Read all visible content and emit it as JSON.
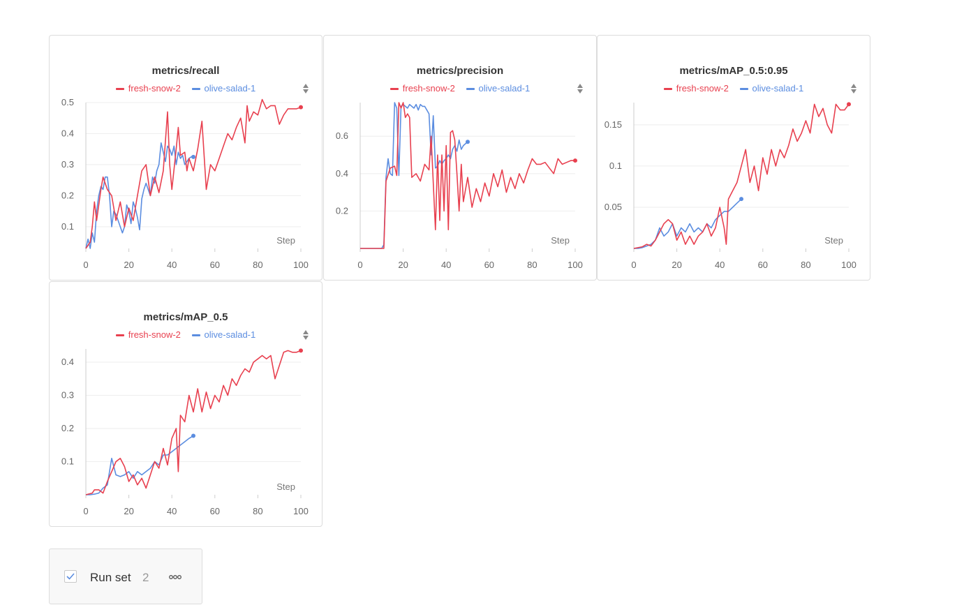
{
  "colors": {
    "fresh_snow": "#e8404f",
    "olive_salad": "#5b8de0",
    "grid": "#eeeeee",
    "axis": "#999999"
  },
  "panels": [
    {
      "title": "metrics/recall",
      "legend": [
        "fresh-snow-2",
        "olive-salad-1"
      ],
      "step_label": "Step",
      "chart_data": {
        "type": "line",
        "title": "metrics/recall",
        "xlabel": "Step",
        "xlim": [
          0,
          100
        ],
        "ylim": [
          0.03,
          0.5
        ],
        "xticks": [
          0,
          20,
          40,
          60,
          80,
          100
        ],
        "yticks": [
          0.1,
          0.2,
          0.3,
          0.4,
          0.5
        ],
        "ytick_labels": [
          "0.1",
          "0.2",
          "0.3",
          "0.4",
          "0.5"
        ],
        "series": [
          {
            "name": "fresh-snow-2",
            "color": "#e8404f",
            "x": [
              0,
              2,
              3,
              4,
              5,
              7,
              8,
              10,
              12,
              14,
              16,
              18,
              20,
              22,
              24,
              26,
              28,
              30,
              32,
              34,
              36,
              38,
              39,
              40,
              42,
              43,
              44,
              46,
              47,
              48,
              50,
              52,
              54,
              56,
              58,
              60,
              62,
              64,
              66,
              68,
              70,
              72,
              74,
              75,
              76,
              78,
              80,
              82,
              84,
              86,
              88,
              90,
              92,
              94,
              96,
              98,
              100
            ],
            "y": [
              0.03,
              0.05,
              0.1,
              0.18,
              0.12,
              0.22,
              0.26,
              0.22,
              0.2,
              0.12,
              0.18,
              0.1,
              0.16,
              0.12,
              0.2,
              0.28,
              0.3,
              0.2,
              0.26,
              0.21,
              0.28,
              0.47,
              0.3,
              0.22,
              0.35,
              0.42,
              0.33,
              0.34,
              0.28,
              0.32,
              0.28,
              0.35,
              0.44,
              0.22,
              0.3,
              0.28,
              0.32,
              0.36,
              0.4,
              0.38,
              0.42,
              0.45,
              0.37,
              0.49,
              0.44,
              0.47,
              0.46,
              0.51,
              0.48,
              0.49,
              0.49,
              0.43,
              0.46,
              0.48,
              0.48,
              0.48,
              0.485
            ]
          },
          {
            "name": "olive-salad-1",
            "color": "#5b8de0",
            "x": [
              0,
              1,
              2,
              3,
              4,
              5,
              6,
              7,
              8,
              9,
              10,
              11,
              12,
              13,
              14,
              15,
              16,
              17,
              18,
              19,
              20,
              21,
              22,
              23,
              24,
              25,
              26,
              27,
              28,
              29,
              30,
              31,
              32,
              33,
              34,
              35,
              36,
              37,
              38,
              39,
              40,
              41,
              42,
              43,
              44,
              45,
              46,
              47,
              48,
              49,
              50
            ],
            "y": [
              0.03,
              0.06,
              0.03,
              0.08,
              0.05,
              0.15,
              0.2,
              0.23,
              0.22,
              0.26,
              0.26,
              0.2,
              0.1,
              0.15,
              0.14,
              0.12,
              0.1,
              0.08,
              0.1,
              0.17,
              0.15,
              0.11,
              0.18,
              0.16,
              0.13,
              0.09,
              0.19,
              0.22,
              0.24,
              0.22,
              0.2,
              0.26,
              0.24,
              0.28,
              0.3,
              0.37,
              0.34,
              0.31,
              0.36,
              0.35,
              0.33,
              0.36,
              0.3,
              0.34,
              0.32,
              0.33,
              0.3,
              0.31,
              0.32,
              0.325,
              0.325
            ]
          }
        ]
      }
    },
    {
      "title": "metrics/precision",
      "legend": [
        "fresh-snow-2",
        "olive-salad-1"
      ],
      "step_label": "Step",
      "chart_data": {
        "type": "line",
        "title": "metrics/precision",
        "xlabel": "Step",
        "xlim": [
          0,
          100
        ],
        "ylim": [
          0,
          0.78
        ],
        "xticks": [
          0,
          20,
          40,
          60,
          80,
          100
        ],
        "yticks": [
          0.2,
          0.4,
          0.6
        ],
        "ytick_labels": [
          "0.2",
          "0.4",
          "0.6"
        ],
        "series": [
          {
            "name": "fresh-snow-2",
            "color": "#e8404f",
            "x": [
              0,
              11,
              12,
              14,
              16,
              17,
              18,
              19,
              20,
              21,
              22,
              23,
              24,
              26,
              28,
              30,
              32,
              33,
              34,
              35,
              36,
              37,
              38,
              39,
              40,
              41,
              42,
              43,
              44,
              45,
              46,
              47,
              48,
              50,
              52,
              54,
              56,
              58,
              60,
              62,
              64,
              66,
              68,
              70,
              72,
              74,
              76,
              78,
              80,
              82,
              84,
              86,
              88,
              90,
              92,
              94,
              96,
              98,
              100
            ],
            "y": [
              0,
              0,
              0.36,
              0.43,
              0.44,
              0.39,
              0.78,
              0.75,
              0.78,
              0.7,
              0.72,
              0.7,
              0.38,
              0.4,
              0.36,
              0.45,
              0.42,
              0.6,
              0.35,
              0.1,
              0.5,
              0.15,
              0.5,
              0.2,
              0.55,
              0.1,
              0.62,
              0.63,
              0.58,
              0.4,
              0.2,
              0.45,
              0.25,
              0.38,
              0.22,
              0.32,
              0.25,
              0.35,
              0.28,
              0.4,
              0.33,
              0.42,
              0.3,
              0.38,
              0.32,
              0.4,
              0.35,
              0.42,
              0.48,
              0.45,
              0.45,
              0.46,
              0.43,
              0.4,
              0.48,
              0.45,
              0.46,
              0.47,
              0.47
            ]
          },
          {
            "name": "olive-salad-1",
            "color": "#5b8de0",
            "x": [
              0,
              10,
              11,
              12,
              13,
              14,
              15,
              16,
              17,
              18,
              19,
              20,
              21,
              22,
              23,
              24,
              25,
              26,
              27,
              28,
              29,
              30,
              31,
              32,
              33,
              34,
              35,
              36,
              37,
              38,
              39,
              40,
              41,
              42,
              43,
              44,
              45,
              46,
              47,
              48,
              49,
              50
            ],
            "y": [
              0,
              0,
              0.02,
              0.38,
              0.48,
              0.4,
              0.39,
              0.78,
              0.75,
              0.39,
              0.76,
              0.77,
              0.76,
              0.75,
              0.77,
              0.76,
              0.75,
              0.77,
              0.74,
              0.77,
              0.76,
              0.76,
              0.74,
              0.72,
              0.5,
              0.71,
              0.43,
              0.44,
              0.47,
              0.45,
              0.47,
              0.48,
              0.5,
              0.48,
              0.53,
              0.55,
              0.52,
              0.58,
              0.53,
              0.55,
              0.56,
              0.57
            ]
          }
        ]
      }
    },
    {
      "title": "metrics/mAP_0.5:0.95",
      "legend": [
        "fresh-snow-2",
        "olive-salad-1"
      ],
      "step_label": "Step",
      "chart_data": {
        "type": "line",
        "title": "metrics/mAP_0.5:0.95",
        "xlabel": "Step",
        "xlim": [
          0,
          100
        ],
        "ylim": [
          0,
          0.177
        ],
        "xticks": [
          0,
          20,
          40,
          60,
          80,
          100
        ],
        "yticks": [
          0.05,
          0.1,
          0.15
        ],
        "ytick_labels": [
          "0.05",
          "0.1",
          "0.15"
        ],
        "series": [
          {
            "name": "fresh-snow-2",
            "color": "#e8404f",
            "x": [
              0,
              4,
              6,
              8,
              10,
              12,
              14,
              16,
              18,
              20,
              22,
              24,
              26,
              28,
              30,
              32,
              34,
              36,
              38,
              40,
              42,
              43,
              44,
              46,
              48,
              50,
              52,
              54,
              56,
              58,
              60,
              62,
              64,
              66,
              68,
              70,
              72,
              74,
              76,
              78,
              80,
              82,
              84,
              86,
              88,
              90,
              92,
              94,
              96,
              98,
              100
            ],
            "y": [
              0,
              0.002,
              0.005,
              0.003,
              0.01,
              0.02,
              0.03,
              0.035,
              0.03,
              0.01,
              0.02,
              0.005,
              0.015,
              0.005,
              0.015,
              0.02,
              0.03,
              0.015,
              0.025,
              0.05,
              0.025,
              0.005,
              0.06,
              0.07,
              0.08,
              0.1,
              0.12,
              0.08,
              0.1,
              0.07,
              0.11,
              0.09,
              0.12,
              0.1,
              0.12,
              0.11,
              0.125,
              0.145,
              0.13,
              0.14,
              0.155,
              0.14,
              0.175,
              0.16,
              0.17,
              0.15,
              0.14,
              0.175,
              0.168,
              0.168,
              0.175
            ]
          },
          {
            "name": "olive-salad-1",
            "color": "#5b8de0",
            "x": [
              0,
              2,
              4,
              6,
              8,
              10,
              12,
              14,
              16,
              18,
              20,
              22,
              24,
              26,
              28,
              30,
              32,
              34,
              36,
              38,
              40,
              42,
              44,
              46,
              48,
              50
            ],
            "y": [
              0,
              0,
              0.001,
              0.003,
              0.005,
              0.01,
              0.025,
              0.015,
              0.02,
              0.03,
              0.015,
              0.025,
              0.02,
              0.03,
              0.02,
              0.025,
              0.02,
              0.03,
              0.025,
              0.035,
              0.04,
              0.045,
              0.045,
              0.05,
              0.055,
              0.06
            ]
          }
        ]
      }
    },
    {
      "title": "metrics/mAP_0.5",
      "legend": [
        "fresh-snow-2",
        "olive-salad-1"
      ],
      "step_label": "Step",
      "chart_data": {
        "type": "line",
        "title": "metrics/mAP_0.5",
        "xlabel": "Step",
        "xlim": [
          0,
          100
        ],
        "ylim": [
          0,
          0.44
        ],
        "xticks": [
          0,
          20,
          40,
          60,
          80,
          100
        ],
        "yticks": [
          0.1,
          0.2,
          0.3,
          0.4
        ],
        "ytick_labels": [
          "0.1",
          "0.2",
          "0.3",
          "0.4"
        ],
        "series": [
          {
            "name": "fresh-snow-2",
            "color": "#e8404f",
            "x": [
              0,
              3,
              4,
              6,
              8,
              10,
              12,
              14,
              16,
              18,
              20,
              22,
              24,
              26,
              28,
              30,
              32,
              34,
              36,
              38,
              40,
              42,
              43,
              44,
              46,
              48,
              50,
              52,
              54,
              56,
              58,
              60,
              62,
              64,
              66,
              68,
              70,
              72,
              74,
              76,
              78,
              80,
              82,
              84,
              86,
              88,
              90,
              92,
              94,
              96,
              98,
              100
            ],
            "y": [
              0,
              0.005,
              0.015,
              0.015,
              0.005,
              0.04,
              0.07,
              0.1,
              0.11,
              0.085,
              0.04,
              0.06,
              0.03,
              0.05,
              0.02,
              0.06,
              0.1,
              0.08,
              0.14,
              0.09,
              0.17,
              0.2,
              0.07,
              0.24,
              0.22,
              0.3,
              0.25,
              0.32,
              0.25,
              0.31,
              0.26,
              0.3,
              0.28,
              0.33,
              0.3,
              0.35,
              0.33,
              0.36,
              0.38,
              0.37,
              0.4,
              0.41,
              0.42,
              0.41,
              0.42,
              0.35,
              0.39,
              0.43,
              0.435,
              0.43,
              0.43,
              0.435
            ]
          },
          {
            "name": "olive-salad-1",
            "color": "#5b8de0",
            "x": [
              0,
              2,
              4,
              6,
              8,
              10,
              12,
              14,
              16,
              18,
              20,
              22,
              24,
              26,
              28,
              30,
              32,
              34,
              36,
              38,
              40,
              42,
              44,
              46,
              48,
              50
            ],
            "y": [
              0,
              0,
              0.002,
              0.005,
              0.02,
              0.03,
              0.11,
              0.06,
              0.055,
              0.06,
              0.07,
              0.05,
              0.07,
              0.06,
              0.07,
              0.08,
              0.1,
              0.09,
              0.12,
              0.12,
              0.13,
              0.14,
              0.15,
              0.16,
              0.17,
              0.178
            ]
          }
        ]
      }
    }
  ],
  "runset": {
    "label": "Run set",
    "count": "2"
  }
}
